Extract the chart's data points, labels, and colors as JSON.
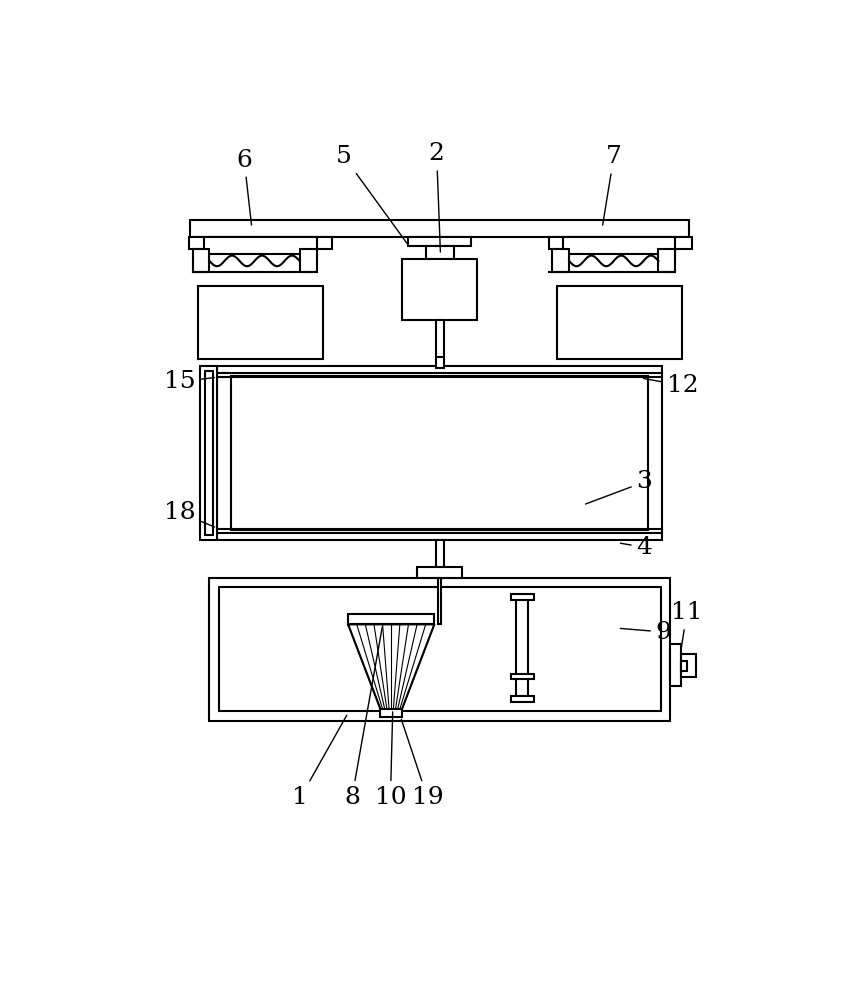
{
  "bg_color": "#ffffff",
  "line_color": "#000000",
  "lw": 1.5,
  "lw_thin": 0.8,
  "fig_width": 8.58,
  "fig_height": 10.0
}
